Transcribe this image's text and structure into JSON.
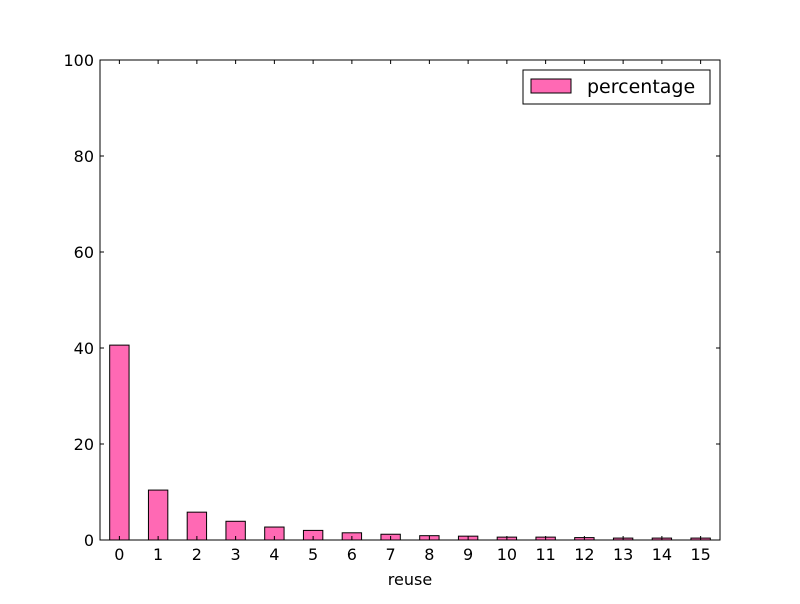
{
  "chart_data": {
    "type": "bar",
    "title": "",
    "xlabel": "reuse",
    "ylabel": "",
    "ylim": [
      0,
      100
    ],
    "yticks": [
      0,
      20,
      40,
      60,
      80,
      100
    ],
    "grid": false,
    "legend_position": "top-right",
    "categories": [
      "0",
      "1",
      "2",
      "3",
      "4",
      "5",
      "6",
      "7",
      "8",
      "9",
      "10",
      "11",
      "12",
      "13",
      "14",
      "15"
    ],
    "series": [
      {
        "name": "percentage",
        "color": "#ff69b4",
        "values": [
          40.6,
          10.4,
          5.8,
          3.9,
          2.7,
          2.0,
          1.5,
          1.2,
          0.9,
          0.8,
          0.6,
          0.6,
          0.5,
          0.4,
          0.4,
          0.4
        ]
      }
    ]
  }
}
